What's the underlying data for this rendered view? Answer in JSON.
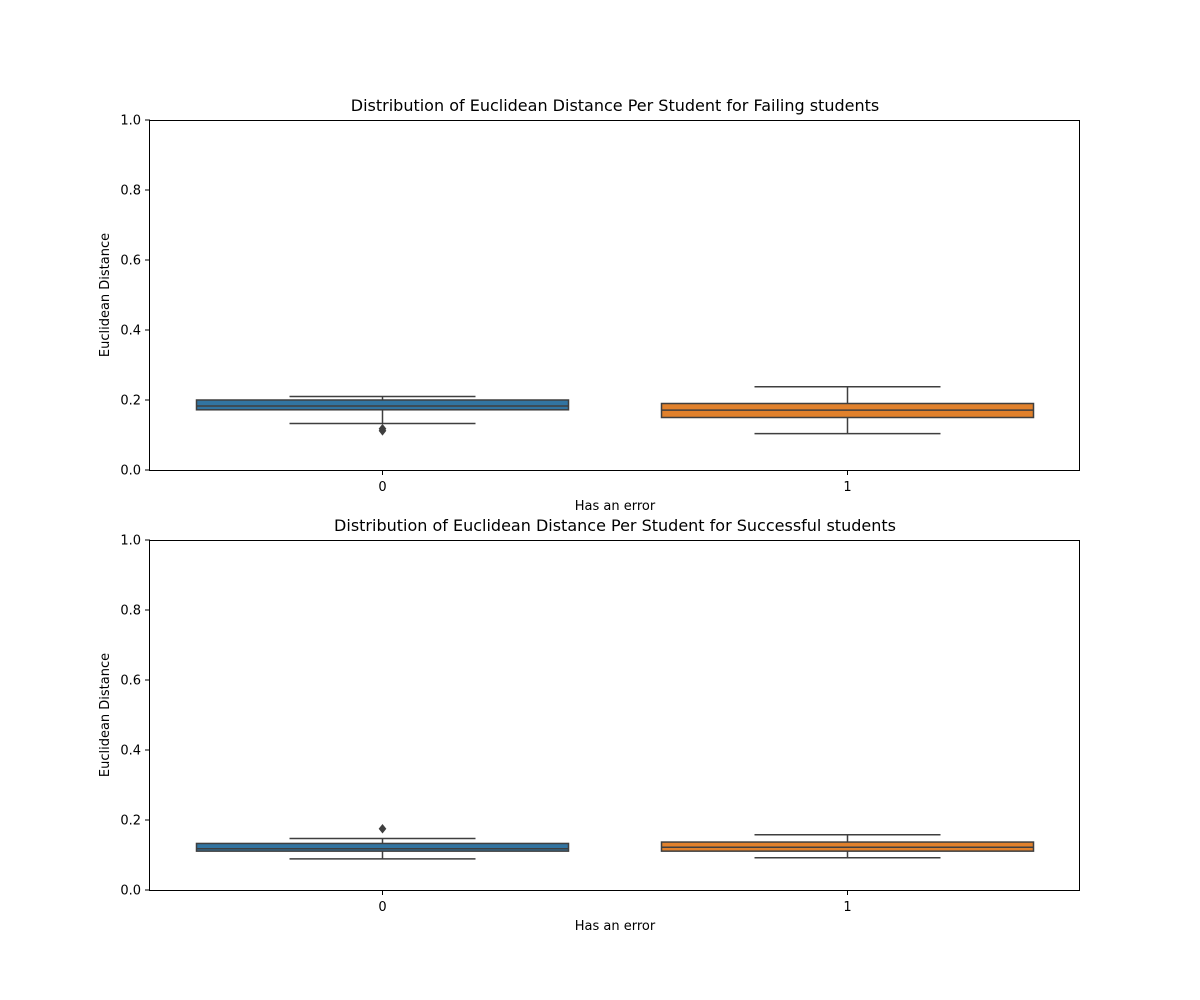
{
  "chart_data": [
    {
      "type": "box",
      "title": "Distribution of Euclidean Distance Per Student for Failing students",
      "xlabel": "Has an error",
      "ylabel": "Euclidean Distance",
      "ylim": [
        0,
        1
      ],
      "yticks": [
        "0.0",
        "0.2",
        "0.4",
        "0.6",
        "0.8",
        "1.0"
      ],
      "categories": [
        "0",
        "1"
      ],
      "colors": [
        "#3274a1",
        "#e1812c"
      ],
      "grid": false,
      "boxes": [
        {
          "category": "0",
          "whisker_low": 0.133,
          "q1": 0.172,
          "median": 0.183,
          "q3": 0.2,
          "whisker_high": 0.21,
          "outliers": [
            0.112,
            0.118
          ]
        },
        {
          "category": "1",
          "whisker_low": 0.104,
          "q1": 0.15,
          "median": 0.171,
          "q3": 0.19,
          "whisker_high": 0.238,
          "outliers": []
        }
      ]
    },
    {
      "type": "box",
      "title": "Distribution of Euclidean Distance Per Student for Successful students",
      "xlabel": "Has an error",
      "ylabel": "Euclidean Distance",
      "ylim": [
        0,
        1
      ],
      "yticks": [
        "0.0",
        "0.2",
        "0.4",
        "0.6",
        "0.8",
        "1.0"
      ],
      "categories": [
        "0",
        "1"
      ],
      "colors": [
        "#3274a1",
        "#e1812c"
      ],
      "grid": false,
      "boxes": [
        {
          "category": "0",
          "whisker_low": 0.089,
          "q1": 0.111,
          "median": 0.118,
          "q3": 0.133,
          "whisker_high": 0.147,
          "outliers": [
            0.175
          ]
        },
        {
          "category": "1",
          "whisker_low": 0.092,
          "q1": 0.111,
          "median": 0.122,
          "q3": 0.137,
          "whisker_high": 0.158,
          "outliers": []
        }
      ]
    }
  ]
}
